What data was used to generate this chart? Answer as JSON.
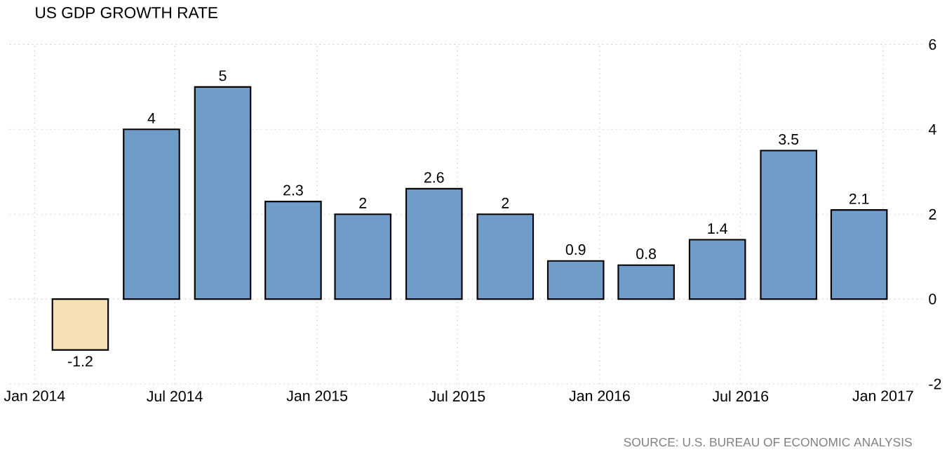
{
  "chart_data": {
    "type": "bar",
    "title": "US GDP GROWTH RATE",
    "x": [
      "2014-03",
      "2014-06",
      "2014-09",
      "2014-12",
      "2015-03",
      "2015-06",
      "2015-09",
      "2015-12",
      "2016-03",
      "2016-06",
      "2016-09",
      "2016-12"
    ],
    "values": [
      -1.2,
      4,
      5,
      2.3,
      2,
      2.6,
      2,
      0.9,
      0.8,
      1.4,
      3.5,
      2.1
    ],
    "colors": [
      "#f5dfb5",
      "#6f9cc9",
      "#6f9cc9",
      "#6f9cc9",
      "#6f9cc9",
      "#6f9cc9",
      "#6f9cc9",
      "#6f9cc9",
      "#6f9cc9",
      "#6f9cc9",
      "#6f9cc9",
      "#6f9cc9"
    ],
    "data_labels": true,
    "xlim": [
      "2013-11-30",
      "2017-02-20"
    ],
    "xticks": [
      {
        "value": "2014-01",
        "label": "Jan 2014"
      },
      {
        "value": "2014-07",
        "label": "Jul 2014"
      },
      {
        "value": "2015-01",
        "label": "Jan 2015"
      },
      {
        "value": "2015-07",
        "label": "Jul 2015"
      },
      {
        "value": "2016-01",
        "label": "Jan 2016"
      },
      {
        "value": "2016-07",
        "label": "Jul 2016"
      },
      {
        "value": "2017-01",
        "label": "Jan 2017"
      }
    ],
    "ylim": [
      -2,
      6
    ],
    "yticks": [
      -2,
      0,
      2,
      4,
      6
    ],
    "grid": true,
    "annotations": [
      "SOURCE: U.S. BUREAU OF ECONOMIC ANALYSIS"
    ]
  }
}
